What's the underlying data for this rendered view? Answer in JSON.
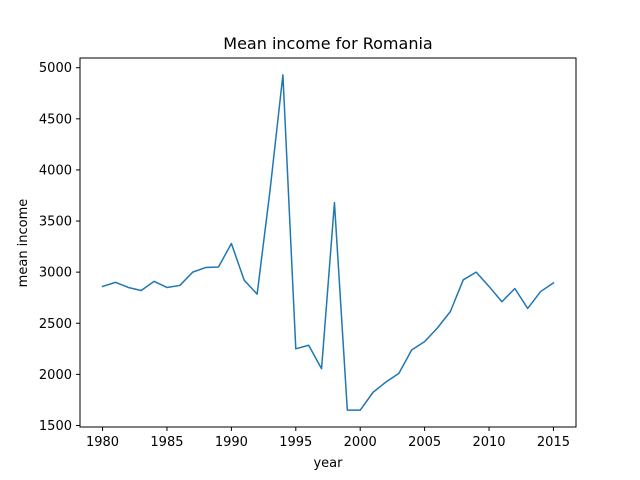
{
  "chart_data": {
    "type": "line",
    "title": "Mean income for Romania",
    "xlabel": "year",
    "ylabel": "mean income",
    "xlim": [
      1978.25,
      2016.75
    ],
    "ylim": [
      1485,
      5095
    ],
    "xticks": [
      1980,
      1985,
      1990,
      1995,
      2000,
      2005,
      2010,
      2015
    ],
    "yticks": [
      1500,
      2000,
      2500,
      3000,
      3500,
      4000,
      4500,
      5000
    ],
    "grid": false,
    "series": [
      {
        "color": "#1f77b4",
        "x": [
          1980,
          1981,
          1982,
          1983,
          1984,
          1985,
          1986,
          1987,
          1988,
          1989,
          1990,
          1991,
          1992,
          1993,
          1994,
          1995,
          1996,
          1997,
          1998,
          1999,
          2000,
          2001,
          2002,
          2003,
          2004,
          2005,
          2006,
          2007,
          2008,
          2009,
          2010,
          2011,
          2012,
          2013,
          2014,
          2015
        ],
        "y": [
          2860,
          2900,
          2850,
          2820,
          2910,
          2850,
          2870,
          3000,
          3045,
          3050,
          3280,
          2920,
          2785,
          3800,
          4930,
          2250,
          2285,
          2055,
          3680,
          1650,
          1650,
          1825,
          1925,
          2010,
          2240,
          2320,
          2455,
          2615,
          2925,
          3000,
          2860,
          2710,
          2840,
          2645,
          2810,
          2895
        ]
      }
    ]
  }
}
